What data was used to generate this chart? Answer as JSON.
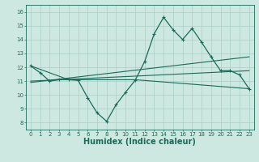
{
  "title": "",
  "xlabel": "Humidex (Indice chaleur)",
  "ylabel": "",
  "bg_color": "#cce8e0",
  "grid_color": "#aacfc8",
  "line_color": "#1a6b5a",
  "xlim": [
    -0.5,
    23.5
  ],
  "ylim": [
    7.5,
    16.5
  ],
  "xticks": [
    0,
    1,
    2,
    3,
    4,
    5,
    6,
    7,
    8,
    9,
    10,
    11,
    12,
    13,
    14,
    15,
    16,
    17,
    18,
    19,
    20,
    21,
    22,
    23
  ],
  "yticks": [
    8,
    9,
    10,
    11,
    12,
    13,
    14,
    15,
    16
  ],
  "line1_x": [
    0,
    1,
    2,
    3,
    4,
    5,
    6,
    7,
    8,
    9,
    10,
    11,
    12,
    13,
    14,
    15,
    16,
    17,
    18,
    19,
    20,
    21,
    22,
    23
  ],
  "line1_y": [
    12.1,
    11.6,
    11.0,
    11.1,
    11.1,
    11.05,
    9.8,
    8.7,
    8.1,
    9.3,
    10.2,
    11.05,
    12.4,
    14.4,
    15.6,
    14.7,
    14.0,
    14.8,
    13.8,
    12.75,
    11.75,
    11.75,
    11.45,
    10.45
  ],
  "line2_x": [
    0,
    4,
    11,
    23
  ],
  "line2_y": [
    12.1,
    11.1,
    11.1,
    10.45
  ],
  "line3_x": [
    0,
    23
  ],
  "line3_y": [
    11.0,
    11.75
  ],
  "line4_x": [
    0,
    23
  ],
  "line4_y": [
    10.9,
    12.75
  ],
  "tick_fontsize": 5,
  "xlabel_fontsize": 7,
  "linewidth_main": 0.9,
  "linewidth_aux": 0.8,
  "marker_size": 3
}
